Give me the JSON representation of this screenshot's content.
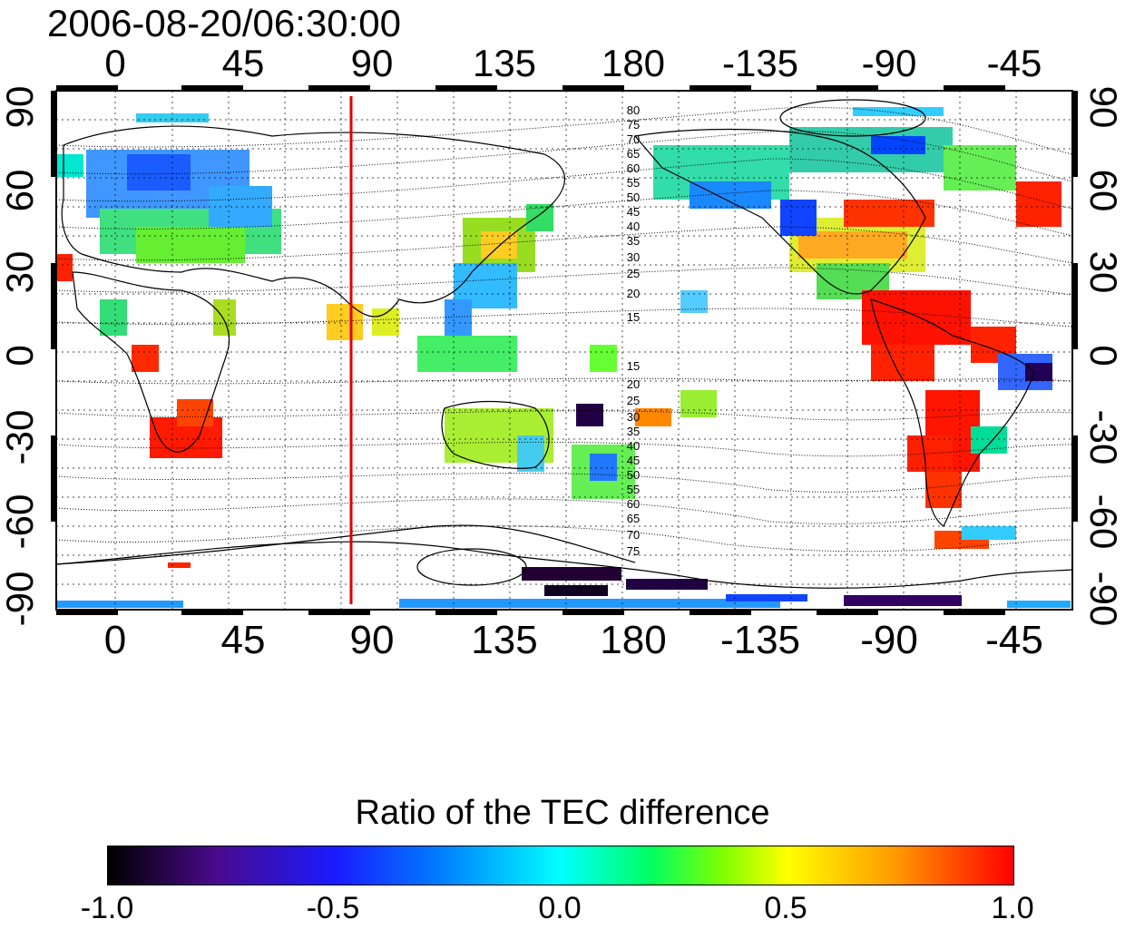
{
  "title": "2006-08-20/06:30:00",
  "top_axis_ticks": [
    "0",
    "45",
    "90",
    "135",
    "180",
    "-135",
    "-90",
    "-45"
  ],
  "bottom_axis_ticks": [
    "0",
    "45",
    "90",
    "135",
    "180",
    "-135",
    "-90",
    "-45"
  ],
  "left_axis_ticks": [
    "90",
    "60",
    "30",
    "0",
    "-30",
    "-60",
    "-90"
  ],
  "right_axis_ticks": [
    "90",
    "60",
    "30",
    "0",
    "-30",
    "-60",
    "-90"
  ],
  "contour_labels_north": [
    "80",
    "75",
    "70",
    "65",
    "60",
    "55",
    "50",
    "45",
    "40",
    "35",
    "30",
    "25",
    "20",
    "15"
  ],
  "contour_labels_south": [
    "15",
    "20",
    "25",
    "30",
    "35",
    "40",
    "45",
    "50",
    "55",
    "60",
    "65",
    "70",
    "75"
  ],
  "colorbar": {
    "title": "Ratio of the TEC difference",
    "ticks": [
      "-1.0",
      "-0.5",
      "0.0",
      "0.5",
      "1.0"
    ],
    "range": [
      -1.0,
      1.0
    ]
  },
  "marker_line": {
    "longitude": 83,
    "color": "#e00000"
  },
  "colors": {
    "low": "#000000",
    "mid": "#00ffff",
    "high": "#ff0000"
  }
}
